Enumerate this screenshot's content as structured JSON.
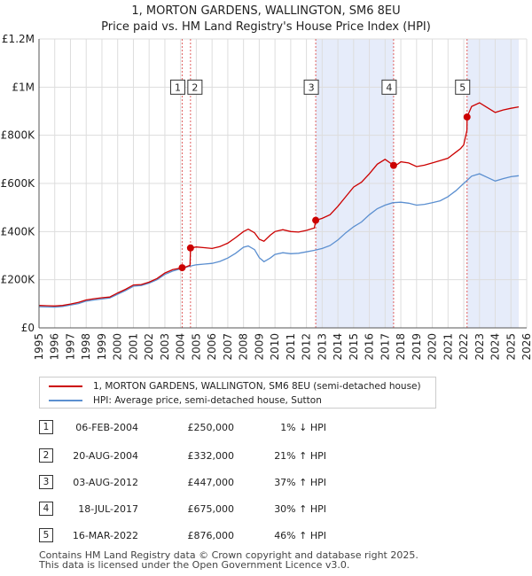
{
  "chart_data": {
    "type": "line",
    "title": "1, MORTON GARDENS, WALLINGTON, SM6 8EU",
    "subtitle": "Price paid vs. HM Land Registry's House Price Index (HPI)",
    "xlim": [
      1995,
      2026
    ],
    "ylim": [
      0,
      1200000
    ],
    "x_ticks": [
      "1995",
      "1996",
      "1997",
      "1998",
      "1999",
      "2000",
      "2001",
      "2002",
      "2003",
      "2004",
      "2005",
      "2006",
      "2007",
      "2008",
      "2009",
      "2010",
      "2011",
      "2012",
      "2013",
      "2014",
      "2015",
      "2016",
      "2017",
      "2018",
      "2019",
      "2020",
      "2021",
      "2022",
      "2023",
      "2024",
      "2025",
      "2026"
    ],
    "y_ticks": [
      {
        "value": 0,
        "label": "£0"
      },
      {
        "value": 200000,
        "label": "£200K"
      },
      {
        "value": 400000,
        "label": "£400K"
      },
      {
        "value": 600000,
        "label": "£600K"
      },
      {
        "value": 800000,
        "label": "£800K"
      },
      {
        "value": 1000000,
        "label": "£1M"
      },
      {
        "value": 1200000,
        "label": "£1.2M"
      }
    ],
    "grid": true,
    "series": [
      {
        "name": "1, MORTON GARDENS, WALLINGTON, SM6 8EU (semi-detached house)",
        "color": "#cc0000",
        "points": [
          [
            1995.0,
            93000
          ],
          [
            1995.5,
            92000
          ],
          [
            1996.0,
            91000
          ],
          [
            1996.5,
            93000
          ],
          [
            1997.0,
            99000
          ],
          [
            1997.5,
            106000
          ],
          [
            1998.0,
            116000
          ],
          [
            1998.5,
            121000
          ],
          [
            1999.0,
            125000
          ],
          [
            1999.5,
            128000
          ],
          [
            2000.0,
            145000
          ],
          [
            2000.5,
            160000
          ],
          [
            2001.0,
            178000
          ],
          [
            2001.5,
            180000
          ],
          [
            2002.0,
            190000
          ],
          [
            2002.5,
            205000
          ],
          [
            2003.0,
            228000
          ],
          [
            2003.5,
            242000
          ],
          [
            2004.1,
            250000
          ],
          [
            2004.3,
            252000
          ],
          [
            2004.6,
            260000
          ],
          [
            2004.63,
            332000
          ],
          [
            2005.0,
            336000
          ],
          [
            2005.5,
            333000
          ],
          [
            2006.0,
            330000
          ],
          [
            2006.5,
            338000
          ],
          [
            2007.0,
            352000
          ],
          [
            2007.5,
            375000
          ],
          [
            2008.0,
            400000
          ],
          [
            2008.3,
            410000
          ],
          [
            2008.7,
            395000
          ],
          [
            2009.0,
            368000
          ],
          [
            2009.3,
            360000
          ],
          [
            2009.7,
            385000
          ],
          [
            2010.0,
            400000
          ],
          [
            2010.5,
            408000
          ],
          [
            2011.0,
            400000
          ],
          [
            2011.5,
            398000
          ],
          [
            2012.0,
            405000
          ],
          [
            2012.5,
            415000
          ],
          [
            2012.59,
            447000
          ],
          [
            2013.0,
            455000
          ],
          [
            2013.5,
            470000
          ],
          [
            2014.0,
            505000
          ],
          [
            2014.5,
            545000
          ],
          [
            2015.0,
            585000
          ],
          [
            2015.5,
            605000
          ],
          [
            2016.0,
            640000
          ],
          [
            2016.5,
            680000
          ],
          [
            2017.0,
            700000
          ],
          [
            2017.54,
            675000
          ],
          [
            2017.8,
            680000
          ],
          [
            2018.0,
            690000
          ],
          [
            2018.5,
            685000
          ],
          [
            2019.0,
            670000
          ],
          [
            2019.5,
            676000
          ],
          [
            2020.0,
            685000
          ],
          [
            2020.5,
            695000
          ],
          [
            2021.0,
            705000
          ],
          [
            2021.5,
            730000
          ],
          [
            2021.8,
            745000
          ],
          [
            2022.0,
            760000
          ],
          [
            2022.2,
            820000
          ],
          [
            2022.21,
            876000
          ],
          [
            2022.5,
            920000
          ],
          [
            2023.0,
            935000
          ],
          [
            2023.5,
            915000
          ],
          [
            2024.0,
            895000
          ],
          [
            2024.5,
            905000
          ],
          [
            2025.0,
            912000
          ],
          [
            2025.5,
            918000
          ]
        ]
      },
      {
        "name": "HPI: Average price, semi-detached house, Sutton",
        "color": "#5b8fd0",
        "points": [
          [
            1995.0,
            88000
          ],
          [
            1995.5,
            87000
          ],
          [
            1996.0,
            86000
          ],
          [
            1996.5,
            89000
          ],
          [
            1997.0,
            95000
          ],
          [
            1997.5,
            101000
          ],
          [
            1998.0,
            111000
          ],
          [
            1998.5,
            116000
          ],
          [
            1999.0,
            120000
          ],
          [
            1999.5,
            124000
          ],
          [
            2000.0,
            140000
          ],
          [
            2000.5,
            155000
          ],
          [
            2001.0,
            173000
          ],
          [
            2001.5,
            176000
          ],
          [
            2002.0,
            186000
          ],
          [
            2002.5,
            200000
          ],
          [
            2003.0,
            222000
          ],
          [
            2003.5,
            236000
          ],
          [
            2004.0,
            245000
          ],
          [
            2004.5,
            255000
          ],
          [
            2005.0,
            262000
          ],
          [
            2005.5,
            265000
          ],
          [
            2006.0,
            268000
          ],
          [
            2006.5,
            276000
          ],
          [
            2007.0,
            290000
          ],
          [
            2007.5,
            310000
          ],
          [
            2008.0,
            335000
          ],
          [
            2008.3,
            340000
          ],
          [
            2008.7,
            325000
          ],
          [
            2009.0,
            292000
          ],
          [
            2009.3,
            275000
          ],
          [
            2009.7,
            290000
          ],
          [
            2010.0,
            305000
          ],
          [
            2010.5,
            312000
          ],
          [
            2011.0,
            308000
          ],
          [
            2011.5,
            310000
          ],
          [
            2012.0,
            316000
          ],
          [
            2012.5,
            322000
          ],
          [
            2013.0,
            330000
          ],
          [
            2013.5,
            342000
          ],
          [
            2014.0,
            365000
          ],
          [
            2014.5,
            395000
          ],
          [
            2015.0,
            420000
          ],
          [
            2015.5,
            440000
          ],
          [
            2016.0,
            470000
          ],
          [
            2016.5,
            495000
          ],
          [
            2017.0,
            510000
          ],
          [
            2017.5,
            520000
          ],
          [
            2018.0,
            522000
          ],
          [
            2018.5,
            518000
          ],
          [
            2019.0,
            510000
          ],
          [
            2019.5,
            513000
          ],
          [
            2020.0,
            520000
          ],
          [
            2020.5,
            528000
          ],
          [
            2021.0,
            545000
          ],
          [
            2021.5,
            570000
          ],
          [
            2022.0,
            600000
          ],
          [
            2022.5,
            630000
          ],
          [
            2023.0,
            640000
          ],
          [
            2023.5,
            625000
          ],
          [
            2024.0,
            610000
          ],
          [
            2024.5,
            620000
          ],
          [
            2025.0,
            628000
          ],
          [
            2025.5,
            632000
          ]
        ]
      }
    ],
    "sales": [
      {
        "id": "1",
        "x": 2004.1,
        "price": 250000
      },
      {
        "id": "2",
        "x": 2004.63,
        "price": 332000
      },
      {
        "id": "3",
        "x": 2012.59,
        "price": 447000
      },
      {
        "id": "4",
        "x": 2017.54,
        "price": 675000
      },
      {
        "id": "5",
        "x": 2022.21,
        "price": 876000
      }
    ],
    "shaded_ranges": [
      [
        2012.59,
        2017.54
      ],
      [
        2022.21,
        2025.5
      ]
    ],
    "marker_label_value": 1000000,
    "colors": {
      "shade": "#e6ecfa",
      "grid": "#dddddd",
      "vline": "#e06060",
      "axis": "#555555"
    }
  },
  "legend": {
    "entries": [
      {
        "label": "1, MORTON GARDENS, WALLINGTON, SM6 8EU (semi-detached house)",
        "color": "#cc0000"
      },
      {
        "label": "HPI: Average price, semi-detached house, Sutton",
        "color": "#5b8fd0"
      }
    ]
  },
  "table": [
    {
      "num": "1",
      "date": "06-FEB-2004",
      "price": "£250,000",
      "hpi": "1% ↓ HPI"
    },
    {
      "num": "2",
      "date": "20-AUG-2004",
      "price": "£332,000",
      "hpi": "21% ↑ HPI"
    },
    {
      "num": "3",
      "date": "03-AUG-2012",
      "price": "£447,000",
      "hpi": "37% ↑ HPI"
    },
    {
      "num": "4",
      "date": "18-JUL-2017",
      "price": "£675,000",
      "hpi": "30% ↑ HPI"
    },
    {
      "num": "5",
      "date": "16-MAR-2022",
      "price": "£876,000",
      "hpi": "46% ↑ HPI"
    }
  ],
  "footer": {
    "line1": "Contains HM Land Registry data © Crown copyright and database right 2025.",
    "line2": "This data is licensed under the Open Government Licence v3.0."
  }
}
